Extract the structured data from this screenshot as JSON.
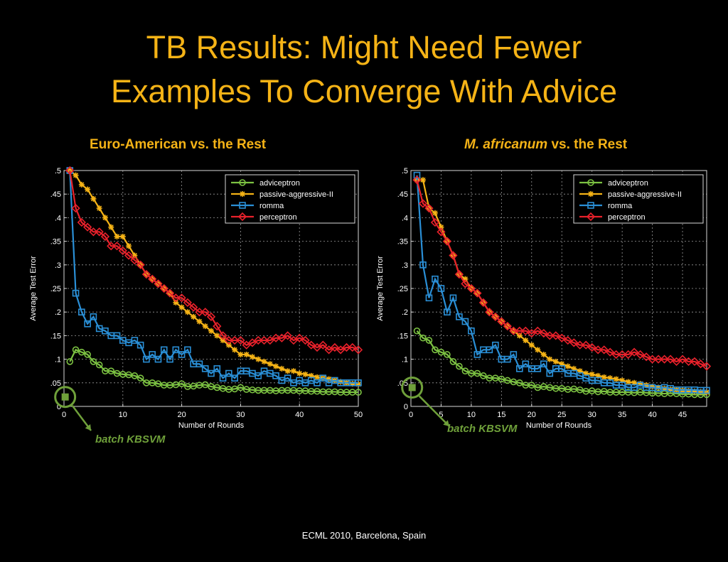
{
  "slide": {
    "title_line1": "TB Results: Might Need Fewer",
    "title_line2": "Examples To Converge With Advice",
    "footer": "ECML 2010, Barcelona, Spain",
    "accent_color": "#f5b316",
    "batch_color": "#6fa03a"
  },
  "chart_data": [
    {
      "type": "line",
      "title": "Euro-American vs. the Rest",
      "xlabel": "Number of Rounds",
      "ylabel": "Average Test Error",
      "xlim": [
        0,
        50
      ],
      "ylim": [
        0,
        0.5
      ],
      "xticks": [
        0,
        10,
        20,
        30,
        40,
        50
      ],
      "yticks": [
        0,
        0.05,
        0.1,
        0.15,
        0.2,
        0.25,
        0.3,
        0.35,
        0.4,
        0.45,
        0.5
      ],
      "grid": true,
      "legend_position": "top-right",
      "series": [
        {
          "name": "adviceptron",
          "color": "#7cc242",
          "marker": "circle",
          "values": [
            0.095,
            0.12,
            0.115,
            0.11,
            0.095,
            0.088,
            0.075,
            0.075,
            0.07,
            0.068,
            0.067,
            0.065,
            0.06,
            0.05,
            0.05,
            0.048,
            0.045,
            0.045,
            0.046,
            0.048,
            0.042,
            0.043,
            0.045,
            0.046,
            0.042,
            0.04,
            0.038,
            0.036,
            0.037,
            0.04,
            0.036,
            0.035,
            0.034,
            0.034,
            0.034,
            0.033,
            0.034,
            0.034,
            0.034,
            0.033,
            0.033,
            0.032,
            0.032,
            0.031,
            0.031,
            0.031,
            0.03,
            0.03,
            0.03,
            0.03
          ]
        },
        {
          "name": "passive-aggressive-II",
          "color": "#f5b316",
          "marker": "star",
          "values": [
            0.5,
            0.49,
            0.47,
            0.46,
            0.44,
            0.42,
            0.4,
            0.38,
            0.36,
            0.36,
            0.34,
            0.32,
            0.3,
            0.28,
            0.27,
            0.26,
            0.25,
            0.24,
            0.22,
            0.21,
            0.2,
            0.19,
            0.18,
            0.17,
            0.16,
            0.15,
            0.14,
            0.13,
            0.12,
            0.11,
            0.11,
            0.105,
            0.1,
            0.095,
            0.09,
            0.085,
            0.08,
            0.075,
            0.075,
            0.07,
            0.068,
            0.065,
            0.062,
            0.06,
            0.058,
            0.055,
            0.052,
            0.05,
            0.048,
            0.047
          ]
        },
        {
          "name": "romma",
          "color": "#2a8fd6",
          "marker": "square",
          "values": [
            0.5,
            0.24,
            0.2,
            0.175,
            0.19,
            0.165,
            0.16,
            0.15,
            0.15,
            0.14,
            0.135,
            0.14,
            0.13,
            0.1,
            0.11,
            0.1,
            0.12,
            0.1,
            0.12,
            0.11,
            0.12,
            0.09,
            0.09,
            0.08,
            0.07,
            0.08,
            0.06,
            0.07,
            0.06,
            0.075,
            0.075,
            0.07,
            0.065,
            0.075,
            0.07,
            0.065,
            0.055,
            0.06,
            0.05,
            0.055,
            0.05,
            0.055,
            0.05,
            0.06,
            0.05,
            0.055,
            0.05,
            0.05,
            0.05,
            0.05
          ]
        },
        {
          "name": "perceptron",
          "color": "#e8212b",
          "marker": "diamond",
          "values": [
            0.5,
            0.42,
            0.39,
            0.38,
            0.37,
            0.37,
            0.36,
            0.34,
            0.34,
            0.33,
            0.32,
            0.31,
            0.3,
            0.28,
            0.27,
            0.26,
            0.25,
            0.24,
            0.23,
            0.23,
            0.22,
            0.21,
            0.2,
            0.2,
            0.19,
            0.17,
            0.15,
            0.14,
            0.14,
            0.14,
            0.13,
            0.135,
            0.14,
            0.14,
            0.14,
            0.145,
            0.145,
            0.15,
            0.14,
            0.145,
            0.14,
            0.13,
            0.125,
            0.13,
            0.12,
            0.125,
            0.12,
            0.125,
            0.125,
            0.12
          ]
        }
      ],
      "batch_point": {
        "label": "batch KBSVM",
        "x": 0,
        "y": 0.02
      }
    },
    {
      "type": "line",
      "title": "M. africanum",
      "title_rest": " vs. the Rest",
      "xlabel": "Number of Rounds",
      "ylabel": "Average Test Error",
      "xlim": [
        0,
        49
      ],
      "ylim": [
        0,
        0.5
      ],
      "xticks": [
        0,
        5,
        10,
        15,
        20,
        25,
        30,
        35,
        40,
        45
      ],
      "yticks": [
        0,
        0.05,
        0.1,
        0.15,
        0.2,
        0.25,
        0.3,
        0.35,
        0.4,
        0.45,
        0.5
      ],
      "grid": true,
      "legend_position": "top-right",
      "series": [
        {
          "name": "adviceptron",
          "color": "#7cc242",
          "marker": "circle",
          "values": [
            0.16,
            0.145,
            0.14,
            0.12,
            0.115,
            0.11,
            0.095,
            0.085,
            0.075,
            0.07,
            0.07,
            0.065,
            0.06,
            0.06,
            0.058,
            0.055,
            0.052,
            0.05,
            0.045,
            0.045,
            0.04,
            0.042,
            0.04,
            0.038,
            0.038,
            0.036,
            0.037,
            0.035,
            0.032,
            0.033,
            0.031,
            0.032,
            0.03,
            0.03,
            0.03,
            0.03,
            0.029,
            0.03,
            0.029,
            0.028,
            0.028,
            0.027,
            0.028,
            0.027,
            0.026,
            0.026,
            0.025,
            0.025,
            0.025
          ]
        },
        {
          "name": "passive-aggressive-II",
          "color": "#f5b316",
          "marker": "star",
          "values": [
            0.48,
            0.48,
            0.42,
            0.41,
            0.38,
            0.35,
            0.32,
            0.28,
            0.27,
            0.25,
            0.24,
            0.22,
            0.2,
            0.19,
            0.18,
            0.17,
            0.16,
            0.15,
            0.14,
            0.13,
            0.12,
            0.11,
            0.1,
            0.095,
            0.09,
            0.085,
            0.08,
            0.075,
            0.07,
            0.068,
            0.065,
            0.062,
            0.06,
            0.058,
            0.055,
            0.052,
            0.05,
            0.048,
            0.045,
            0.042,
            0.04,
            0.038,
            0.036,
            0.035,
            0.034,
            0.033,
            0.032,
            0.031,
            0.03
          ]
        },
        {
          "name": "romma",
          "color": "#2a8fd6",
          "marker": "square",
          "values": [
            0.49,
            0.3,
            0.23,
            0.27,
            0.25,
            0.2,
            0.23,
            0.19,
            0.18,
            0.16,
            0.11,
            0.12,
            0.12,
            0.13,
            0.1,
            0.1,
            0.11,
            0.08,
            0.09,
            0.08,
            0.08,
            0.09,
            0.07,
            0.08,
            0.08,
            0.07,
            0.07,
            0.065,
            0.06,
            0.055,
            0.055,
            0.05,
            0.05,
            0.045,
            0.045,
            0.04,
            0.04,
            0.045,
            0.04,
            0.04,
            0.038,
            0.04,
            0.038,
            0.035,
            0.035,
            0.035,
            0.035,
            0.034,
            0.034
          ]
        },
        {
          "name": "perceptron",
          "color": "#e8212b",
          "marker": "diamond",
          "values": [
            0.48,
            0.43,
            0.42,
            0.39,
            0.37,
            0.35,
            0.32,
            0.28,
            0.26,
            0.25,
            0.24,
            0.22,
            0.2,
            0.19,
            0.18,
            0.17,
            0.16,
            0.16,
            0.16,
            0.155,
            0.16,
            0.155,
            0.15,
            0.15,
            0.145,
            0.14,
            0.135,
            0.13,
            0.13,
            0.125,
            0.12,
            0.12,
            0.115,
            0.11,
            0.11,
            0.11,
            0.115,
            0.11,
            0.105,
            0.1,
            0.1,
            0.1,
            0.1,
            0.095,
            0.1,
            0.095,
            0.095,
            0.09,
            0.085
          ]
        }
      ],
      "batch_point": {
        "label": "batch KBSVM",
        "x": 0,
        "y": 0.04
      }
    }
  ]
}
